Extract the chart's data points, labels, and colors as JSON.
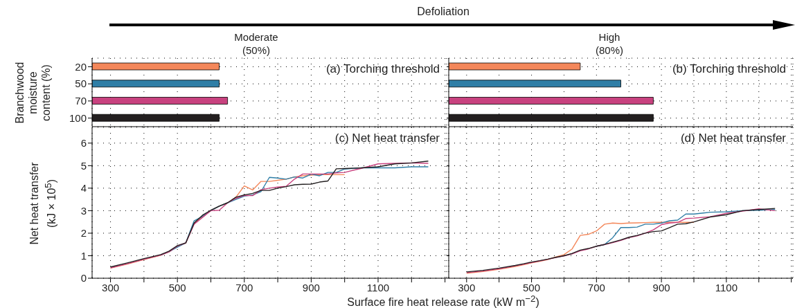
{
  "chart_data": [
    {
      "type": "bar",
      "orientation": "horizontal",
      "title": "(a) Torching threshold",
      "subtitle": "Moderate (50%)",
      "ylabel": "Branchwood moisture content (%)",
      "annotations": [
        "Defoliation"
      ],
      "categories": [
        "20",
        "50",
        "70",
        "100"
      ],
      "values": [
        625,
        625,
        650,
        625
      ],
      "colors": [
        "#f4875a",
        "#2f7ea6",
        "#c8427f",
        "#231f20"
      ],
      "xlim": [
        245,
        1305
      ],
      "xticks": [
        300,
        {
          "value": 400,
          "label": null
        },
        500,
        {
          "value": 600,
          "label": null
        },
        700,
        {
          "value": 800,
          "label": null
        },
        900,
        {
          "value": 1000,
          "label": null
        },
        1100,
        {
          "value": 1200,
          "label": null
        },
        {
          "value": 1300,
          "label": null
        }
      ],
      "grid": true,
      "tick_labels": "y"
    },
    {
      "type": "bar",
      "orientation": "horizontal",
      "title": "(b) Torching threshold",
      "subtitle": "High (80%)",
      "categories": [
        "20",
        "50",
        "70",
        "100"
      ],
      "values": [
        650,
        775,
        875,
        875
      ],
      "colors": [
        "#f4875a",
        "#2f7ea6",
        "#c8427f",
        "#231f20"
      ],
      "xlim": [
        245,
        1305
      ],
      "xticks": [
        300,
        {
          "value": 400,
          "label": null
        },
        500,
        {
          "value": 600,
          "label": null
        },
        700,
        {
          "value": 800,
          "label": null
        },
        900,
        {
          "value": 1000,
          "label": null
        },
        1100,
        {
          "value": 1200,
          "label": null
        },
        {
          "value": 1300,
          "label": null
        }
      ],
      "grid": true,
      "tick_labels": false
    },
    {
      "type": "line",
      "title": "(c) Net heat transfer",
      "xlabel": "Surface fire heat release rate (kW m$^{−2}$)",
      "ylabel": "Net heat transfer (kJ × 10$^{5}$)",
      "marker": "none",
      "line_style": "solid",
      "grid": true,
      "x": [
        300,
        350,
        400,
        450,
        475,
        500,
        525,
        550,
        575,
        600,
        625,
        650,
        675,
        700,
        725,
        750,
        775,
        800,
        825,
        850,
        875,
        900,
        925,
        950,
        975,
        1000,
        1050,
        1100,
        1150,
        1200,
        1250
      ],
      "series": [
        {
          "color": "#f4875a",
          "values": [
            0.45,
            0.63,
            0.83,
            1.02,
            1.17,
            1.42,
            1.56,
            2.45,
            2.75,
            3.0,
            3.2,
            3.35,
            3.6,
            4.1,
            3.92,
            4.3,
            4.3,
            4.35,
            4.4,
            4.5,
            4.55,
            4.58,
            4.6,
            4.6,
            4.6,
            4.6,
            null,
            null,
            null,
            null,
            null
          ]
        },
        {
          "color": "#2f7ea6",
          "values": [
            null,
            null,
            null,
            1.03,
            1.18,
            1.38,
            1.57,
            2.55,
            2.75,
            3.0,
            3.2,
            3.35,
            3.5,
            3.65,
            3.7,
            3.85,
            4.48,
            4.45,
            4.4,
            4.5,
            4.45,
            4.62,
            4.55,
            4.7,
            4.7,
            4.85,
            4.9,
            4.9,
            4.9,
            4.95,
            4.95
          ]
        },
        {
          "color": "#c8427f",
          "values": [
            0.46,
            0.64,
            0.84,
            1.03,
            1.17,
            1.43,
            1.57,
            2.4,
            2.7,
            3.0,
            3.02,
            3.35,
            3.55,
            3.68,
            3.67,
            3.93,
            4.0,
            4.05,
            4.08,
            4.4,
            4.63,
            4.63,
            4.63,
            4.63,
            4.68,
            4.7,
            4.88,
            5.08,
            5.1,
            5.12,
            5.1
          ]
        },
        {
          "color": "#231f20",
          "values": [
            0.5,
            0.68,
            0.87,
            1.05,
            1.2,
            1.45,
            1.57,
            2.45,
            2.8,
            3.02,
            3.2,
            3.35,
            3.6,
            3.7,
            3.77,
            3.9,
            3.9,
            4.0,
            4.07,
            4.15,
            4.17,
            4.18,
            4.27,
            4.32,
            4.86,
            4.87,
            4.9,
            4.95,
            5.08,
            5.12,
            5.2
          ]
        }
      ],
      "xlim": [
        245,
        1305
      ],
      "xticks": [
        300,
        {
          "value": 400,
          "label": null
        },
        500,
        {
          "value": 600,
          "label": null
        },
        700,
        {
          "value": 800,
          "label": null
        },
        900,
        {
          "value": 1000,
          "label": null
        },
        1100,
        {
          "value": 1200,
          "label": null
        },
        {
          "value": 1300,
          "label": null
        }
      ],
      "ylim": [
        0,
        6.7
      ],
      "yticks": [
        0,
        1,
        2,
        3,
        4,
        5,
        6
      ]
    },
    {
      "type": "line",
      "title": "(d) Net heat transfer",
      "marker": "none",
      "line_style": "solid",
      "grid": true,
      "tick_labels": "x",
      "x": [
        300,
        350,
        400,
        450,
        475,
        500,
        525,
        550,
        575,
        600,
        625,
        650,
        675,
        700,
        725,
        750,
        775,
        800,
        825,
        850,
        875,
        900,
        925,
        950,
        975,
        1000,
        1050,
        1100,
        1150,
        1200,
        1250
      ],
      "series": [
        {
          "color": "#f4875a",
          "values": [
            0.22,
            0.3,
            0.4,
            0.52,
            0.6,
            0.68,
            0.75,
            0.83,
            0.95,
            1.05,
            1.3,
            1.9,
            1.95,
            2.1,
            2.4,
            2.45,
            2.43,
            2.45,
            2.46,
            2.47,
            2.48,
            2.48,
            2.48,
            2.48,
            2.48,
            2.48,
            null,
            null,
            null,
            null,
            null
          ]
        },
        {
          "color": "#2f7ea6",
          "values": [
            null,
            null,
            null,
            null,
            null,
            null,
            null,
            null,
            null,
            null,
            null,
            null,
            null,
            1.42,
            1.5,
            1.8,
            2.25,
            2.25,
            2.27,
            2.4,
            2.4,
            2.45,
            2.55,
            2.58,
            2.85,
            2.85,
            2.93,
            2.95,
            3.0,
            3.02,
            3.05
          ]
        },
        {
          "color": "#c8427f",
          "values": [
            0.25,
            0.32,
            0.42,
            0.55,
            0.62,
            0.7,
            0.77,
            0.84,
            0.92,
            0.99,
            1.08,
            1.22,
            1.3,
            1.42,
            1.5,
            1.58,
            1.68,
            1.8,
            1.88,
            2.0,
            2.15,
            2.38,
            2.45,
            2.48,
            2.65,
            2.67,
            2.73,
            2.88,
            2.98,
            3.08,
            3.0
          ]
        },
        {
          "color": "#231f20",
          "values": [
            0.28,
            0.35,
            0.45,
            0.57,
            0.64,
            0.72,
            0.78,
            0.85,
            0.93,
            1.0,
            1.1,
            1.25,
            1.32,
            1.42,
            1.5,
            1.6,
            1.7,
            1.82,
            1.9,
            2.0,
            2.07,
            2.1,
            2.25,
            2.4,
            2.42,
            2.5,
            2.72,
            2.82,
            3.0,
            3.05,
            3.1
          ]
        }
      ],
      "xlim": [
        245,
        1305
      ],
      "xticks": [
        300,
        {
          "value": 400,
          "label": null
        },
        500,
        {
          "value": 600,
          "label": null
        },
        700,
        {
          "value": 800,
          "label": null
        },
        900,
        {
          "value": 1000,
          "label": null
        },
        1100,
        {
          "value": 1200,
          "label": null
        },
        {
          "value": 1300,
          "label": null
        }
      ],
      "ylim": [
        0,
        6.7
      ],
      "yticks": [
        0,
        1,
        2,
        3,
        4,
        5,
        6
      ]
    }
  ]
}
